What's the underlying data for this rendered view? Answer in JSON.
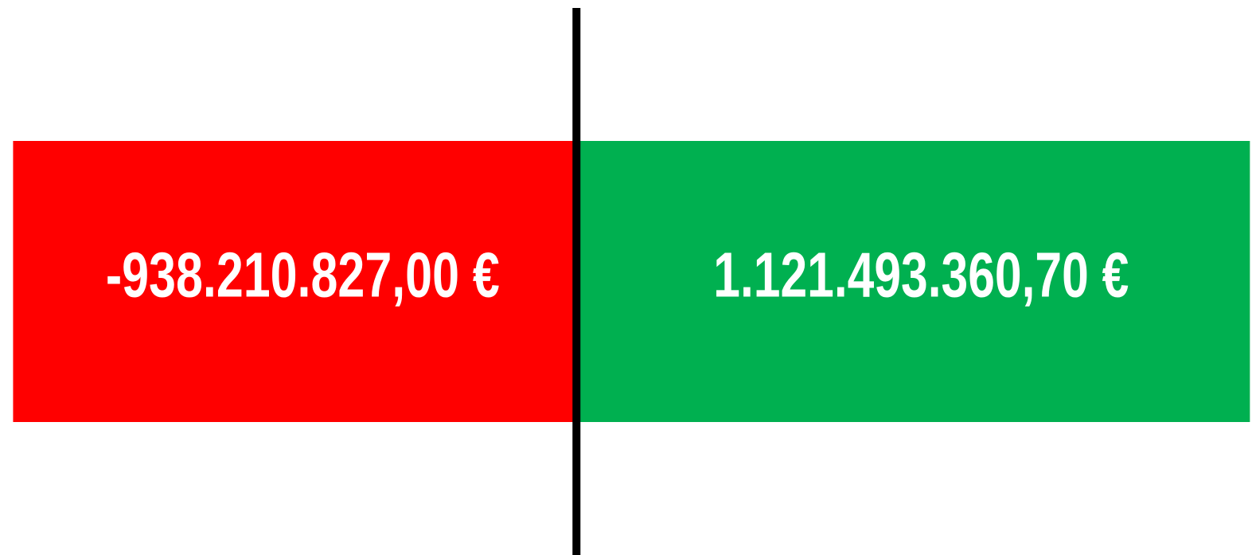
{
  "chart_data": {
    "type": "diverging-bar",
    "values": [
      -938210827.0,
      1121493360.7
    ],
    "value_labels": [
      "-938.210.827,00 €",
      "1.121.493.360,70 €"
    ],
    "colors": [
      "#ff0000",
      "#00b050"
    ],
    "xlim": [
      -960000000,
      1125000000
    ]
  }
}
